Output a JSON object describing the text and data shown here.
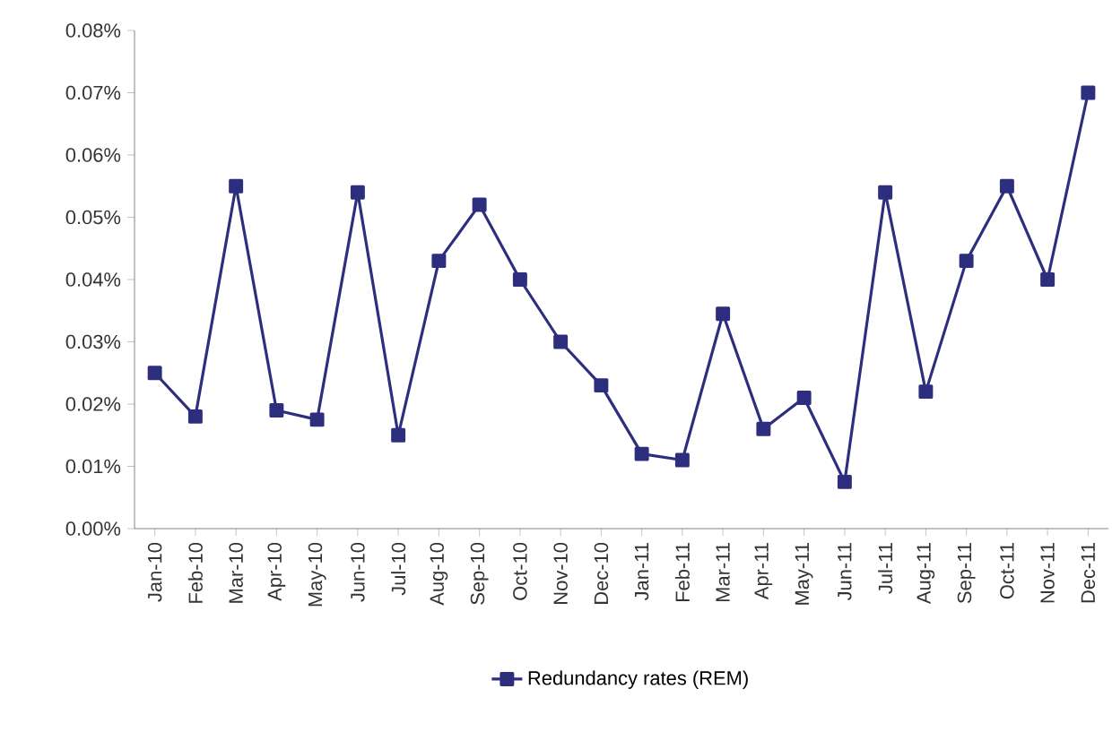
{
  "chart_data": {
    "type": "line",
    "categories": [
      "Jan-10",
      "Feb-10",
      "Mar-10",
      "Apr-10",
      "May-10",
      "Jun-10",
      "Jul-10",
      "Aug-10",
      "Sep-10",
      "Oct-10",
      "Nov-10",
      "Dec-10",
      "Jan-11",
      "Feb-11",
      "Mar-11",
      "Apr-11",
      "May-11",
      "Jun-11",
      "Jul-11",
      "Aug-11",
      "Sep-11",
      "Oct-11",
      "Nov-11",
      "Dec-11"
    ],
    "series": [
      {
        "name": "Redundancy rates (REM)",
        "color": "#2e2e7e",
        "values": [
          0.025,
          0.018,
          0.055,
          0.019,
          0.0175,
          0.054,
          0.015,
          0.043,
          0.052,
          0.04,
          0.03,
          0.023,
          0.012,
          0.011,
          0.0345,
          0.016,
          0.021,
          0.0075,
          0.054,
          0.022,
          0.043,
          0.055,
          0.04,
          0.07
        ]
      }
    ],
    "ylim": [
      0,
      0.08
    ],
    "yticks": [
      {
        "value": 0,
        "label": "0.00%"
      },
      {
        "value": 0.01,
        "label": "0.01%"
      },
      {
        "value": 0.02,
        "label": "0.02%"
      },
      {
        "value": 0.03,
        "label": "0.03%"
      },
      {
        "value": 0.04,
        "label": "0.04%"
      },
      {
        "value": 0.05,
        "label": "0.05%"
      },
      {
        "value": 0.06,
        "label": "0.06%"
      },
      {
        "value": 0.07,
        "label": "0.07%"
      },
      {
        "value": 0.08,
        "label": "0.08%"
      }
    ],
    "legend": "bottom",
    "marker": "square",
    "line_style": "solid",
    "grid": false
  }
}
